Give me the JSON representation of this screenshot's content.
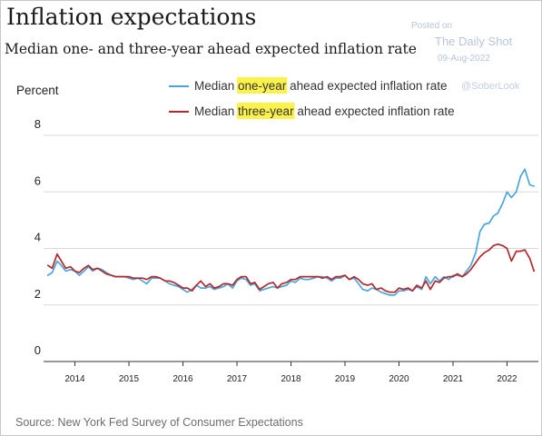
{
  "header": {
    "title": "Inflation expectations",
    "subtitle": "Median one- and three-year ahead expected inflation rate"
  },
  "watermark": {
    "posted": "Posted on",
    "site": "The Daily Shot",
    "date": "09-Aug-2022",
    "handle": "@SoberLook"
  },
  "source": "Source: New York Fed Survey of Consumer Expectations",
  "colors": {
    "one_year": "#4aa7dc",
    "three_year": "#b5282c",
    "highlight": "#fbf24b",
    "grid": "#d9d9d9",
    "axis": "#333333"
  },
  "chart_data": {
    "type": "line",
    "ylabel": "Percent",
    "ylim": [
      0,
      8
    ],
    "yticks": [
      0,
      2,
      4,
      6,
      8
    ],
    "xlim": [
      2013.42,
      2022.58
    ],
    "xticks": [
      2014,
      2015,
      2016,
      2017,
      2018,
      2019,
      2020,
      2021,
      2022
    ],
    "grid": true,
    "legend": {
      "position": "top-right",
      "entries": [
        {
          "series": "one_year",
          "prefix": "Median ",
          "highlight": "one-year",
          "suffix": " ahead expected inflation rate"
        },
        {
          "series": "three_year",
          "prefix": "Median ",
          "highlight": "three-year",
          "suffix": " ahead expected inflation rate"
        }
      ]
    },
    "x": [
      2013.5,
      2013.58,
      2013.67,
      2013.75,
      2013.83,
      2013.92,
      2014.0,
      2014.08,
      2014.17,
      2014.25,
      2014.33,
      2014.42,
      2014.5,
      2014.58,
      2014.67,
      2014.75,
      2014.83,
      2014.92,
      2015.0,
      2015.08,
      2015.17,
      2015.25,
      2015.33,
      2015.42,
      2015.5,
      2015.58,
      2015.67,
      2015.75,
      2015.83,
      2015.92,
      2016.0,
      2016.08,
      2016.17,
      2016.25,
      2016.33,
      2016.42,
      2016.5,
      2016.58,
      2016.67,
      2016.75,
      2016.83,
      2016.92,
      2017.0,
      2017.08,
      2017.17,
      2017.25,
      2017.33,
      2017.42,
      2017.5,
      2017.58,
      2017.67,
      2017.75,
      2017.83,
      2017.92,
      2018.0,
      2018.08,
      2018.17,
      2018.25,
      2018.33,
      2018.42,
      2018.5,
      2018.58,
      2018.67,
      2018.75,
      2018.83,
      2018.92,
      2019.0,
      2019.08,
      2019.17,
      2019.25,
      2019.33,
      2019.42,
      2019.5,
      2019.58,
      2019.67,
      2019.75,
      2019.83,
      2019.92,
      2020.0,
      2020.08,
      2020.17,
      2020.25,
      2020.33,
      2020.42,
      2020.5,
      2020.58,
      2020.67,
      2020.75,
      2020.83,
      2020.92,
      2021.0,
      2021.08,
      2021.17,
      2021.25,
      2021.33,
      2021.42,
      2021.5,
      2021.58,
      2021.67,
      2021.75,
      2021.83,
      2021.92,
      2022.0,
      2022.08,
      2022.17,
      2022.25,
      2022.33,
      2022.42,
      2022.5
    ],
    "series": [
      {
        "name": "one_year",
        "values": [
          3.05,
          3.15,
          3.55,
          3.4,
          3.2,
          3.25,
          3.2,
          3.05,
          3.2,
          3.35,
          3.2,
          3.3,
          3.25,
          3.15,
          3.05,
          3.0,
          3.0,
          3.0,
          2.95,
          2.9,
          2.95,
          2.85,
          2.75,
          2.95,
          2.95,
          2.95,
          2.85,
          2.75,
          2.7,
          2.65,
          2.55,
          2.45,
          2.55,
          2.7,
          2.6,
          2.6,
          2.65,
          2.55,
          2.6,
          2.65,
          2.75,
          2.6,
          2.85,
          2.95,
          2.9,
          2.7,
          2.75,
          2.5,
          2.55,
          2.6,
          2.65,
          2.6,
          2.65,
          2.7,
          2.85,
          2.8,
          2.95,
          2.9,
          2.9,
          2.95,
          3.0,
          3.0,
          2.95,
          2.85,
          2.95,
          2.95,
          3.05,
          2.9,
          2.95,
          2.75,
          2.55,
          2.5,
          2.6,
          2.55,
          2.45,
          2.4,
          2.35,
          2.35,
          2.5,
          2.5,
          2.55,
          2.5,
          2.65,
          2.55,
          3.0,
          2.75,
          3.0,
          2.85,
          3.0,
          2.9,
          3.05,
          3.05,
          3.0,
          3.2,
          3.4,
          3.85,
          4.6,
          4.85,
          4.9,
          5.15,
          5.25,
          5.6,
          6.0,
          5.8,
          6.0,
          6.55,
          6.8,
          6.25,
          6.2
        ],
        "color": "#4aa7dc"
      },
      {
        "name": "three_year",
        "values": [
          3.4,
          3.3,
          3.8,
          3.55,
          3.3,
          3.35,
          3.2,
          3.15,
          3.3,
          3.4,
          3.25,
          3.3,
          3.2,
          3.1,
          3.05,
          3.0,
          3.0,
          3.0,
          3.0,
          2.95,
          2.95,
          2.95,
          2.9,
          3.0,
          3.0,
          2.95,
          2.85,
          2.85,
          2.8,
          2.7,
          2.6,
          2.6,
          2.5,
          2.7,
          2.85,
          2.65,
          2.75,
          2.6,
          2.65,
          2.75,
          2.75,
          2.7,
          2.9,
          3.0,
          3.0,
          2.75,
          2.8,
          2.55,
          2.65,
          2.75,
          2.8,
          2.6,
          2.75,
          2.8,
          2.9,
          2.9,
          3.0,
          3.0,
          3.0,
          3.0,
          3.0,
          2.95,
          3.0,
          2.9,
          3.0,
          3.0,
          3.05,
          2.9,
          3.0,
          2.9,
          2.75,
          2.7,
          2.75,
          2.55,
          2.6,
          2.5,
          2.45,
          2.45,
          2.6,
          2.55,
          2.6,
          2.5,
          2.7,
          2.6,
          2.85,
          2.55,
          2.85,
          2.8,
          2.95,
          3.0,
          3.0,
          3.1,
          3.0,
          3.1,
          3.25,
          3.5,
          3.7,
          3.85,
          3.95,
          4.1,
          4.15,
          4.1,
          4.0,
          3.55,
          3.9,
          3.9,
          3.95,
          3.65,
          3.2
        ],
        "color": "#b5282c"
      }
    ]
  }
}
